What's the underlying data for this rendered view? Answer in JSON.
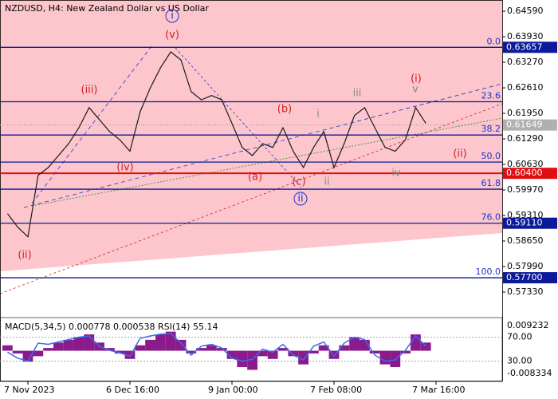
{
  "chart_data": {
    "type": "line",
    "title": "NZDUSD, H4:  New Zealand Dollar vs US Dollar",
    "categories": [
      null,
      null,
      "7 Nov 2023",
      null,
      null,
      null,
      null,
      null,
      null,
      null,
      null,
      null,
      "6 Dec 16:00",
      null,
      null,
      null,
      null,
      null,
      null,
      null,
      null,
      null,
      "9 Jan 00:00",
      null,
      null,
      null,
      null,
      null,
      null,
      null,
      null,
      null,
      "7 Feb 08:00",
      null,
      null,
      null,
      null,
      null,
      null,
      null,
      null,
      null,
      "7 Mar 16:00"
    ],
    "series": [
      {
        "name": "NZDUSD",
        "color": "#1a1a1a",
        "values": [
          0.5936,
          0.5901,
          0.5876,
          0.6035,
          0.6055,
          0.6086,
          0.6117,
          0.6158,
          0.621,
          0.6179,
          0.6148,
          0.6127,
          0.6097,
          0.6199,
          0.6261,
          0.6313,
          0.6354,
          0.6333,
          0.6251,
          0.623,
          0.6241,
          0.623,
          0.6169,
          0.6107,
          0.6086,
          0.6117,
          0.6107,
          0.6158,
          0.6097,
          0.6055,
          0.6107,
          0.6148,
          0.6055,
          0.6117,
          0.6189,
          0.621,
          0.6158,
          0.6107,
          0.6097,
          0.6127,
          0.621,
          0.6169,
          null
        ]
      }
    ],
    "ylim": [
      0.5667,
      0.6488
    ],
    "yticks": [
      {
        "value": 0.6459,
        "label": "0.64590"
      },
      {
        "value": 0.6393,
        "label": "0.63930"
      },
      {
        "value": 0.6327,
        "label": "0.63270"
      },
      {
        "value": 0.6261,
        "label": "0.62610"
      },
      {
        "value": 0.6195,
        "label": "0.61950"
      },
      {
        "value": 0.6129,
        "label": "0.61290"
      },
      {
        "value": 0.6063,
        "label": "0.60630"
      },
      {
        "value": 0.5997,
        "label": "0.59970"
      },
      {
        "value": 0.5931,
        "label": "0.59310"
      },
      {
        "value": 0.5865,
        "label": "0.58650"
      },
      {
        "value": 0.5799,
        "label": "0.57990"
      },
      {
        "value": 0.5733,
        "label": "0.57330"
      }
    ],
    "levels": [
      {
        "fib": "0.0",
        "value": 0.63657,
        "label": "0.63657",
        "color": "#0a1a9a"
      },
      {
        "fib": "23.6",
        "value": 0.6225,
        "color": "#0a1a9a"
      },
      {
        "fib": "38.2",
        "value": 0.6139,
        "color": "#0a1a9a"
      },
      {
        "fib": "50.0",
        "value": 0.6069,
        "color": "#0a1a9a"
      },
      {
        "fib": "61.8",
        "value": 0.5999,
        "color": "#0a1a9a"
      },
      {
        "fib": "76.0",
        "value": 0.5911,
        "label": "0.59110",
        "color": "#0a1a9a"
      },
      {
        "fib": "100.0",
        "value": 0.577,
        "label": "0.57700",
        "color": "#0a1a9a"
      }
    ],
    "support": {
      "value": 0.604,
      "label": "0.60400",
      "color": "#e01010"
    },
    "current_price": {
      "value": 0.61649,
      "label": "0.61649"
    },
    "annotations": [
      {
        "text": "i",
        "color": "#2233cc"
      },
      {
        "text": "(v)",
        "color": "#cc2222"
      },
      {
        "text": "(iii)",
        "color": "#cc2222"
      },
      {
        "text": "(iv)",
        "color": "#cc2222"
      },
      {
        "text": "(ii)",
        "color": "#cc2222"
      },
      {
        "text": "(a)",
        "color": "#cc2222"
      },
      {
        "text": "(b)",
        "color": "#cc2222"
      },
      {
        "text": "(c)",
        "color": "#cc2222"
      },
      {
        "text": "ii",
        "color": "#2233cc"
      },
      {
        "text": "i",
        "color": "#888888"
      },
      {
        "text": "ii",
        "color": "#888888"
      },
      {
        "text": "iii",
        "color": "#888888"
      },
      {
        "text": "iv",
        "color": "#888888"
      },
      {
        "text": "v",
        "color": "#888888"
      },
      {
        "text": "(i)",
        "color": "#cc2222"
      },
      {
        "text": "(ii)",
        "color": "#cc2222"
      }
    ],
    "indicator": {
      "title": "MACD(5,34,5) 0.000778 0.000538 RSI(14) 55.14",
      "macd": [
        0.002,
        -0.001,
        -0.004,
        -0.002,
        0.001,
        0.003,
        0.004,
        0.005,
        0.006,
        0.003,
        0.001,
        -0.001,
        -0.003,
        0.002,
        0.004,
        0.006,
        0.007,
        0.004,
        -0.001,
        0.001,
        0.002,
        0.001,
        -0.003,
        -0.006,
        -0.007,
        -0.002,
        -0.003,
        0.001,
        -0.002,
        -0.005,
        -0.001,
        0.002,
        -0.003,
        0.002,
        0.005,
        0.004,
        -0.001,
        -0.005,
        -0.006,
        -0.001,
        0.006,
        0.003,
        null
      ],
      "macd_color": "#8b1a8b",
      "macd_ylim": [
        -0.008334,
        0.009232
      ],
      "macd_ticks": [
        0.009232,
        -0.008334
      ],
      "rsi": [
        45,
        35,
        30,
        60,
        58,
        62,
        66,
        70,
        72,
        55,
        48,
        44,
        38,
        68,
        72,
        75,
        76,
        60,
        40,
        55,
        58,
        52,
        35,
        30,
        33,
        50,
        45,
        58,
        40,
        32,
        55,
        62,
        38,
        60,
        70,
        66,
        40,
        30,
        32,
        48,
        72,
        55,
        null
      ],
      "rsi_color": "#3a6cf0",
      "rsi_ylim": [
        0,
        100
      ],
      "rsi_ticks": [
        {
          "value": 70,
          "label": "70.00"
        },
        {
          "value": 30,
          "label": "30.00"
        }
      ]
    }
  }
}
